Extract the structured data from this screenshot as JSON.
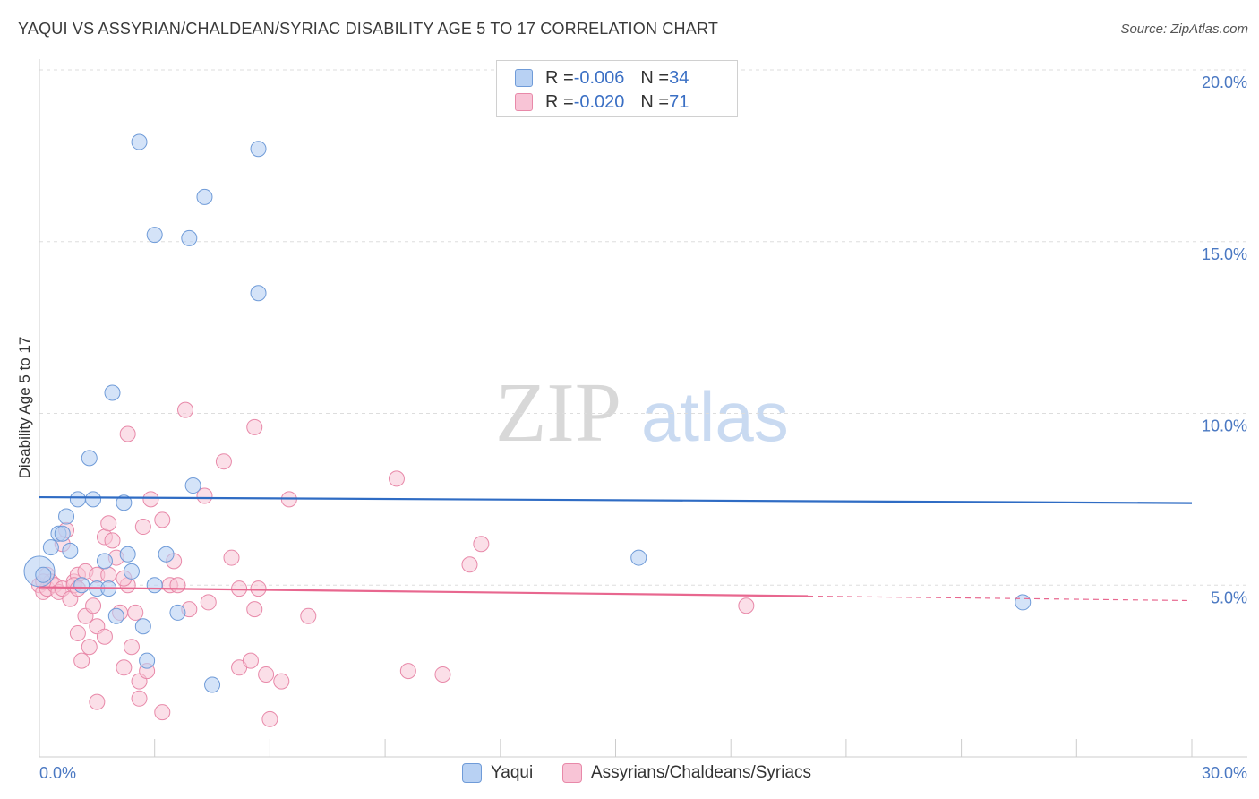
{
  "header": {
    "title": "YAQUI VS ASSYRIAN/CHALDEAN/SYRIAC DISABILITY AGE 5 TO 17 CORRELATION CHART",
    "source": "Source: ZipAtlas.com"
  },
  "watermark": {
    "zip": "ZIP",
    "atlas": "atlas"
  },
  "legend": {
    "series1": {
      "r_label": "R = ",
      "r_value": "-0.006",
      "n_label": "N = ",
      "n_value": "34"
    },
    "series2": {
      "r_label": "R = ",
      "r_value": "-0.020",
      "n_label": "N = ",
      "n_value": "71"
    }
  },
  "colors": {
    "yaqui_fill": "#b8d1f3",
    "yaqui_stroke": "#6f9bd8",
    "yaqui_line": "#2f6cc4",
    "assyrian_fill": "#f8c4d6",
    "assyrian_stroke": "#e889a9",
    "assyrian_line": "#e8678f",
    "grid": "#dddddd",
    "axis_text": "#4a78c2"
  },
  "chart_data": {
    "type": "scatter",
    "title": "YAQUI VS ASSYRIAN/CHALDEAN/SYRIAC DISABILITY AGE 5 TO 17 CORRELATION CHART",
    "xlabel": "",
    "ylabel": "Disability Age 5 to 17",
    "xlim": [
      0,
      30
    ],
    "ylim": [
      0,
      20
    ],
    "x_tick_labels": [
      "0.0%",
      "30.0%"
    ],
    "y_ticks": [
      5,
      10,
      15,
      20
    ],
    "y_tick_labels": [
      "5.0%",
      "10.0%",
      "15.0%",
      "20.0%"
    ],
    "grid": true,
    "series": [
      {
        "name": "Yaqui",
        "r": -0.006,
        "n": 34,
        "trend": {
          "x": [
            0,
            30
          ],
          "y": [
            7.56,
            7.39
          ]
        },
        "points": [
          [
            0.0,
            5.4
          ],
          [
            0.3,
            6.1
          ],
          [
            0.5,
            6.5
          ],
          [
            0.6,
            6.5
          ],
          [
            0.7,
            7.0
          ],
          [
            0.8,
            6.0
          ],
          [
            1.0,
            7.5
          ],
          [
            1.1,
            5.0
          ],
          [
            1.3,
            8.7
          ],
          [
            1.4,
            7.5
          ],
          [
            1.5,
            4.9
          ],
          [
            1.7,
            5.7
          ],
          [
            1.8,
            4.9
          ],
          [
            1.9,
            10.6
          ],
          [
            2.0,
            4.1
          ],
          [
            2.2,
            7.4
          ],
          [
            2.3,
            5.9
          ],
          [
            2.4,
            5.4
          ],
          [
            2.6,
            17.9
          ],
          [
            2.7,
            3.8
          ],
          [
            2.8,
            2.8
          ],
          [
            3.0,
            15.2
          ],
          [
            3.0,
            5.0
          ],
          [
            3.3,
            5.9
          ],
          [
            3.6,
            4.2
          ],
          [
            3.9,
            15.1
          ],
          [
            4.0,
            7.9
          ],
          [
            4.3,
            16.3
          ],
          [
            4.5,
            2.1
          ],
          [
            5.7,
            13.5
          ],
          [
            5.7,
            17.7
          ],
          [
            15.6,
            5.8
          ],
          [
            25.6,
            4.5
          ],
          [
            0.1,
            5.3
          ]
        ]
      },
      {
        "name": "Assyrians/Chaldeans/Syriacs",
        "r": -0.02,
        "n": 71,
        "trend": {
          "x": [
            0,
            20
          ],
          "y": [
            4.94,
            4.68
          ]
        },
        "trend_dashed": {
          "x": [
            20,
            30
          ],
          "y": [
            4.68,
            4.55
          ]
        },
        "points": [
          [
            0.0,
            5.0
          ],
          [
            0.1,
            4.8
          ],
          [
            0.2,
            5.3
          ],
          [
            0.2,
            4.9
          ],
          [
            0.3,
            5.1
          ],
          [
            0.4,
            5.0
          ],
          [
            0.5,
            4.8
          ],
          [
            0.6,
            6.2
          ],
          [
            0.6,
            4.9
          ],
          [
            0.7,
            6.6
          ],
          [
            0.8,
            4.6
          ],
          [
            0.9,
            5.1
          ],
          [
            1.0,
            5.3
          ],
          [
            1.0,
            3.6
          ],
          [
            1.1,
            2.8
          ],
          [
            1.2,
            5.4
          ],
          [
            1.2,
            4.1
          ],
          [
            1.3,
            3.2
          ],
          [
            1.4,
            4.4
          ],
          [
            1.5,
            5.3
          ],
          [
            1.5,
            3.8
          ],
          [
            1.5,
            1.6
          ],
          [
            1.7,
            6.4
          ],
          [
            1.7,
            3.5
          ],
          [
            1.8,
            6.8
          ],
          [
            1.8,
            5.3
          ],
          [
            1.9,
            6.3
          ],
          [
            2.0,
            5.8
          ],
          [
            2.1,
            4.2
          ],
          [
            2.2,
            2.6
          ],
          [
            2.3,
            9.4
          ],
          [
            2.3,
            5.0
          ],
          [
            2.4,
            3.2
          ],
          [
            2.5,
            4.2
          ],
          [
            2.6,
            1.7
          ],
          [
            2.6,
            2.2
          ],
          [
            2.7,
            6.7
          ],
          [
            2.8,
            2.5
          ],
          [
            2.9,
            7.5
          ],
          [
            3.2,
            1.3
          ],
          [
            3.2,
            6.9
          ],
          [
            3.4,
            5.0
          ],
          [
            3.5,
            5.7
          ],
          [
            3.6,
            5.0
          ],
          [
            3.8,
            10.1
          ],
          [
            3.9,
            4.3
          ],
          [
            4.3,
            7.6
          ],
          [
            4.4,
            4.5
          ],
          [
            4.8,
            8.6
          ],
          [
            5.0,
            5.8
          ],
          [
            5.2,
            4.9
          ],
          [
            5.2,
            2.6
          ],
          [
            5.5,
            2.8
          ],
          [
            5.6,
            9.6
          ],
          [
            5.6,
            4.3
          ],
          [
            5.7,
            4.9
          ],
          [
            5.9,
            2.4
          ],
          [
            6.0,
            1.1
          ],
          [
            6.3,
            2.2
          ],
          [
            6.5,
            7.5
          ],
          [
            7.0,
            4.1
          ],
          [
            9.3,
            8.1
          ],
          [
            9.6,
            2.5
          ],
          [
            10.5,
            2.4
          ],
          [
            11.2,
            5.6
          ],
          [
            11.5,
            6.2
          ],
          [
            18.4,
            4.4
          ],
          [
            0.1,
            5.1
          ],
          [
            0.9,
            5.0
          ],
          [
            2.2,
            5.2
          ],
          [
            1.0,
            4.9
          ]
        ]
      }
    ]
  },
  "bottom_legend": {
    "yaqui": "Yaqui",
    "assyrian": "Assyrians/Chaldeans/Syriacs"
  }
}
